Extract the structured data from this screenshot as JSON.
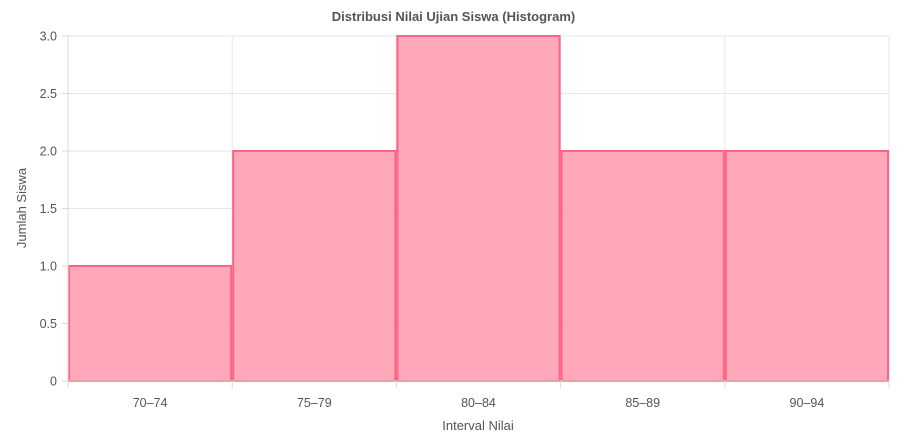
{
  "chart_data": {
    "type": "bar",
    "title": "Distribusi Nilai Ujian Siswa (Histogram)",
    "xlabel": "Interval Nilai",
    "ylabel": "Jumlah Siswa",
    "categories": [
      "70–74",
      "75–79",
      "80–84",
      "85–89",
      "90–94"
    ],
    "values": [
      1,
      2,
      3,
      2,
      2
    ],
    "ylim": [
      0,
      3
    ],
    "yticks": [
      "0",
      "0.5",
      "1.0",
      "1.5",
      "2.0",
      "2.5",
      "3.0"
    ],
    "grid": true,
    "legend": "none",
    "colors": {
      "bar_fill": "#ffa3b5",
      "bar_stroke": "#ff6384"
    }
  }
}
